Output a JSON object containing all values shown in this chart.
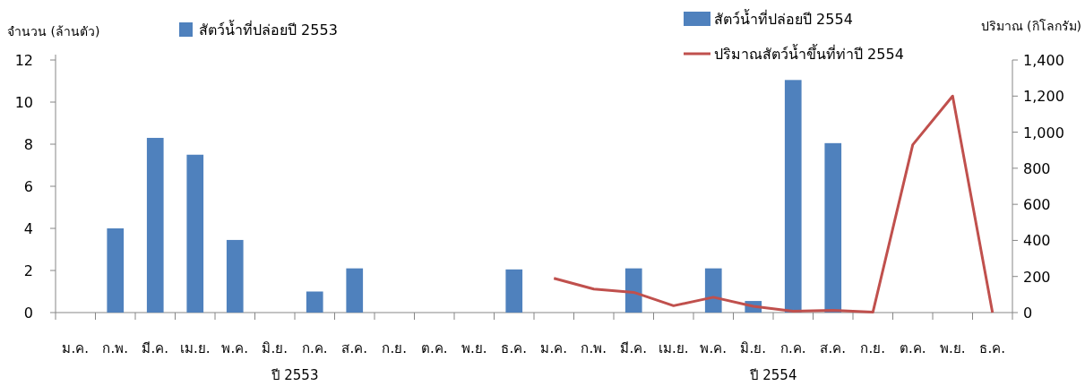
{
  "chart_data": {
    "type": "bar",
    "ylabel": "จำนวน (ล้านตัว)",
    "y2label": "ปริมาณ (กิโลกรัม)",
    "categories": [
      "ม.ค.",
      "ก.พ.",
      "มี.ค.",
      "เม.ย.",
      "พ.ค.",
      "มิ.ย.",
      "ก.ค.",
      "ส.ค.",
      "ก.ย.",
      "ต.ค.",
      "พ.ย.",
      "ธ.ค.",
      "ม.ค.",
      "ก.พ.",
      "มี.ค.",
      "เม.ย.",
      "พ.ค.",
      "มิ.ย.",
      "ก.ค.",
      "ส.ค.",
      "ก.ย.",
      "ต.ค.",
      "พ.ย.",
      "ธ.ค."
    ],
    "series": [
      {
        "name": "สัตว์น้ำที่ปล่อยปี 2553",
        "color": "#4f81bd",
        "values": [
          0,
          4,
          8.3,
          7.5,
          3.45,
          0,
          1,
          2.1,
          0,
          0,
          0,
          2.05,
          null,
          null,
          null,
          null,
          null,
          null,
          null,
          null,
          null,
          null,
          null,
          null
        ]
      },
      {
        "name": "สัตว์น้ำที่ปล่อยปี 2554",
        "color": "#4f81bd",
        "values": [
          null,
          null,
          null,
          null,
          null,
          null,
          null,
          null,
          null,
          null,
          null,
          null,
          0,
          0,
          2.1,
          0,
          2.1,
          0.55,
          11.05,
          8.05,
          0,
          0,
          0,
          0
        ]
      },
      {
        "name": "ปริมาณสัตว์น้ำขึ้นที่ท่าปี 2554",
        "type": "line",
        "axis": "y2",
        "color": "#c0504d",
        "values": [
          null,
          null,
          null,
          null,
          null,
          null,
          null,
          null,
          null,
          null,
          null,
          null,
          190,
          130,
          112,
          38,
          85,
          35,
          8,
          12,
          2,
          930,
          1200,
          0
        ]
      }
    ],
    "ylim": [
      0,
      12
    ],
    "yticks": [
      0,
      2,
      4,
      6,
      8,
      10,
      12
    ],
    "y2lim": [
      0,
      1400
    ],
    "y2ticks": [
      0,
      200,
      400,
      600,
      800,
      {
        "value": 1000,
        "label": "1,000"
      },
      {
        "value": 1200,
        "label": "1,200"
      },
      {
        "value": 1400,
        "label": "1,400"
      }
    ],
    "annotations": [
      "ปี 2553",
      "ปี 2554"
    ],
    "legend": "top",
    "grid": false
  }
}
